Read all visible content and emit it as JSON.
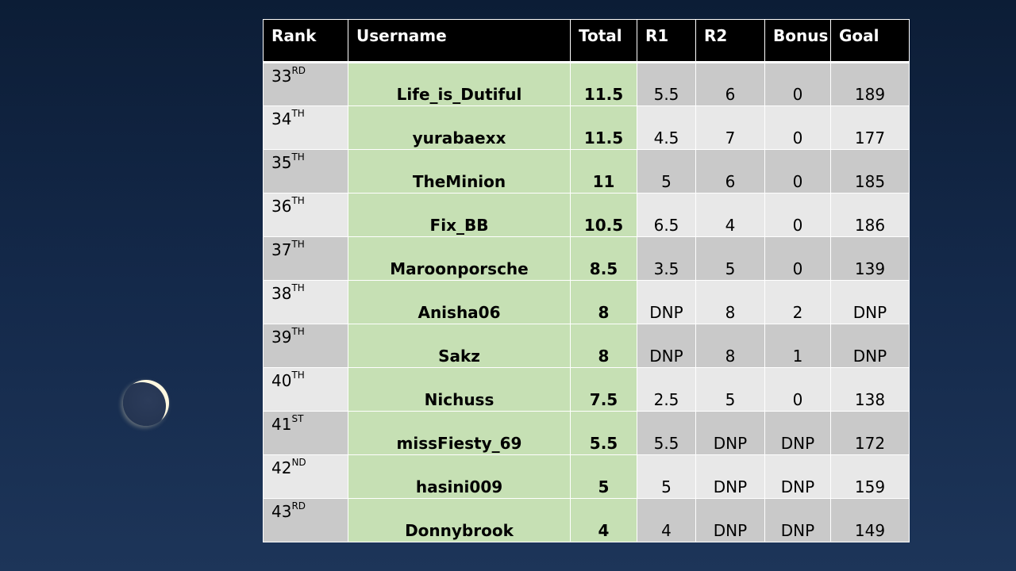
{
  "headers": [
    "Rank",
    "Username",
    "Total",
    "R1",
    "R2",
    "Bonus",
    "Goal"
  ],
  "rows": [
    {
      "rank": "33",
      "suffix": "RD",
      "username": "Life_is_Dutiful",
      "total": "11.5",
      "r1": "5.5",
      "r2": "6",
      "bonus": "0",
      "goal": "189"
    },
    {
      "rank": "34",
      "suffix": "TH",
      "username": "yurabaexx",
      "total": "11.5",
      "r1": "4.5",
      "r2": "7",
      "bonus": "0",
      "goal": "177"
    },
    {
      "rank": "35",
      "suffix": "TH",
      "username": "TheMinion",
      "total": "11",
      "r1": "5",
      "r2": "6",
      "bonus": "0",
      "goal": "185"
    },
    {
      "rank": "36",
      "suffix": "TH",
      "username": "Fix_BB",
      "total": "10.5",
      "r1": "6.5",
      "r2": "4",
      "bonus": "0",
      "goal": "186"
    },
    {
      "rank": "37",
      "suffix": "TH",
      "username": "Maroonporsche",
      "total": "8.5",
      "r1": "3.5",
      "r2": "5",
      "bonus": "0",
      "goal": "139"
    },
    {
      "rank": "38",
      "suffix": "TH",
      "username": "Anisha06",
      "total": "8",
      "r1": "DNP",
      "r2": "8",
      "bonus": "2",
      "goal": "DNP"
    },
    {
      "rank": "39",
      "suffix": "TH",
      "username": "Sakz",
      "total": "8",
      "r1": "DNP",
      "r2": "8",
      "bonus": "1",
      "goal": "DNP"
    },
    {
      "rank": "40",
      "suffix": "TH",
      "username": "Nichuss",
      "total": "7.5",
      "r1": "2.5",
      "r2": "5",
      "bonus": "0",
      "goal": "138"
    },
    {
      "rank": "41",
      "suffix": "ST",
      "username": "missFiesty_69",
      "total": "5.5",
      "r1": "5.5",
      "r2": "DNP",
      "bonus": "DNP",
      "goal": "172"
    },
    {
      "rank": "42",
      "suffix": "ND",
      "username": "hasini009",
      "total": "5",
      "r1": "5",
      "r2": "DNP",
      "bonus": "DNP",
      "goal": "159"
    },
    {
      "rank": "43",
      "suffix": "RD",
      "username": "Donnybrook",
      "total": "4",
      "r1": "4",
      "r2": "DNP",
      "bonus": "DNP",
      "goal": "149"
    }
  ],
  "colors": {
    "header_bg": "#000000",
    "row_dark": "#c9c9c9",
    "row_light": "#e8e8e8",
    "highlight": "#c6e0b4"
  }
}
